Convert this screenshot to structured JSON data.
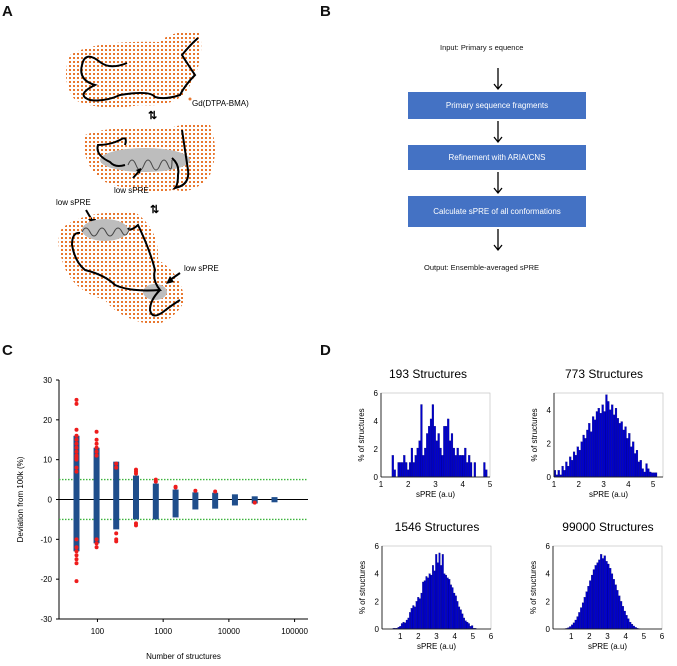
{
  "panels": {
    "a": "A",
    "b": "B",
    "c": "C",
    "d": "D"
  },
  "panel_a": {
    "gd_label": "Gd(DTPA-BMA)",
    "low_spre_1": "low sPRE",
    "low_spre_2": "low sPRE",
    "low_spre_3": "low sPRE",
    "equilibrium_icon": "equilibrium-arrows",
    "colors": {
      "dots": "#e8772e",
      "chain": "#000000",
      "helix_shade": "#bdbdbd"
    }
  },
  "panel_b": {
    "input": "Input: Primary     s equence",
    "steps": [
      "Primary sequence fragments",
      "Refinement with ARIA/CNS",
      "Calculate sPRE of all conformations"
    ],
    "output": "Output: Ensemble-averaged sPRE",
    "box_color": "#4472c4"
  },
  "chart_data": [
    {
      "type": "scatter",
      "xlabel": "Number of structures",
      "ylabel": "Deviation from 100k (%)",
      "xscale": "log",
      "xlim": [
        26,
        160000
      ],
      "ylim": [
        -30,
        30
      ],
      "xticks": [
        "100",
        "1000",
        "10000",
        "100000"
      ],
      "yticks": [
        "30",
        "20",
        "10",
        "0",
        "-10",
        "-20",
        "-30"
      ],
      "reference_line": 0,
      "threshold_lines": [
        5,
        -5
      ],
      "colors": {
        "range": "#1f4e8c",
        "outlier": "#ee1c1c",
        "threshold": "#3cb43c"
      },
      "groups": [
        {
          "x": 48,
          "range": [
            -13,
            16
          ],
          "outliers": [
            25,
            24,
            17.5,
            16,
            15,
            14,
            13,
            12,
            11,
            10.5,
            10,
            8,
            7,
            -10,
            -12,
            -13,
            -14,
            -15,
            -16,
            -20.5
          ]
        },
        {
          "x": 97,
          "range": [
            -11,
            13
          ],
          "outliers": [
            17,
            15,
            14,
            13,
            12,
            11,
            -10,
            -11,
            -12
          ]
        },
        {
          "x": 193,
          "range": [
            -7.5,
            9.5
          ],
          "outliers": [
            9,
            8,
            -8.5,
            -10,
            -10.5
          ]
        },
        {
          "x": 386,
          "range": [
            -5,
            6
          ],
          "outliers": [
            7.5,
            7,
            6.5,
            -6,
            -6.5
          ]
        },
        {
          "x": 773,
          "range": [
            -5,
            4
          ],
          "outliers": [
            5,
            4.5
          ]
        },
        {
          "x": 1546,
          "range": [
            -4.5,
            2.5
          ],
          "outliers": [
            3,
            3.2
          ]
        },
        {
          "x": 3092,
          "range": [
            -2.5,
            1.8
          ],
          "outliers": [
            2.2
          ]
        },
        {
          "x": 6184,
          "range": [
            -2.3,
            1.7
          ],
          "outliers": [
            2
          ]
        },
        {
          "x": 12368,
          "range": [
            -1.5,
            1.3
          ],
          "outliers": []
        },
        {
          "x": 24736,
          "range": [
            -1,
            0.8
          ],
          "outliers": [
            -0.8
          ]
        },
        {
          "x": 49472,
          "range": [
            -0.7,
            0.6
          ],
          "outliers": []
        }
      ]
    },
    {
      "type": "bar",
      "title": "193 Structures",
      "xlabel": "sPRE (a.u)",
      "ylabel": "% of structures",
      "xlim": [
        1,
        5
      ],
      "ylim": [
        0,
        6
      ],
      "xticks": [
        "1",
        "2",
        "3",
        "4",
        "5"
      ],
      "yticks": [
        "0",
        "2",
        "4",
        "6"
      ],
      "bin_start": 1.4,
      "bin_width": 0.07,
      "color": "#0000cc",
      "values": [
        1.55,
        0.52,
        0,
        1.04,
        1.04,
        1.04,
        1.55,
        1.04,
        0.52,
        1.04,
        2.07,
        1.04,
        1.55,
        2.07,
        2.59,
        5.18,
        1.55,
        2.07,
        3.11,
        3.63,
        4.15,
        5.18,
        3.63,
        2.59,
        3.11,
        2.07,
        1.55,
        3.63,
        3.63,
        4.15,
        2.59,
        3.11,
        2.07,
        1.55,
        2.07,
        1.55,
        1.55,
        1.55,
        2.07,
        1.04,
        1.55,
        1.04,
        0,
        1.04,
        0,
        0,
        0,
        0,
        1.04,
        0.52
      ]
    },
    {
      "type": "bar",
      "title": "773 Structures",
      "xlabel": "sPRE (a.u)",
      "ylabel": "% of structures",
      "xlim": [
        1,
        5.4
      ],
      "ylim": [
        0,
        5
      ],
      "xticks": [
        "1",
        "2",
        "3",
        "4",
        "5"
      ],
      "yticks": [
        "0",
        "2",
        "4"
      ],
      "bin_start": 1.0,
      "bin_width": 0.077,
      "color": "#0000cc",
      "values": [
        0.4,
        0.13,
        0.4,
        0.13,
        0.65,
        0.4,
        0.9,
        0.65,
        1.2,
        1.0,
        1.5,
        1.3,
        1.8,
        1.6,
        2.1,
        2.5,
        2.3,
        2.8,
        3.2,
        2.7,
        3.6,
        3.4,
        3.9,
        4.1,
        3.8,
        4.3,
        3.9,
        4.9,
        4.5,
        4.0,
        4.3,
        3.7,
        4.1,
        3.5,
        3.2,
        3.3,
        2.8,
        3.0,
        2.3,
        2.6,
        1.8,
        2.1,
        1.4,
        1.6,
        0.9,
        1.0,
        0.5,
        0.3,
        0.8,
        0.5,
        0.3,
        0.26,
        0.26,
        0.26
      ]
    },
    {
      "type": "bar",
      "title": "1546 Structures",
      "xlabel": "sPRE (a.u)",
      "ylabel": "% of structures",
      "xlim": [
        0,
        6
      ],
      "ylim": [
        0,
        6
      ],
      "xticks": [
        "1",
        "2",
        "3",
        "4",
        "5",
        "6"
      ],
      "yticks": [
        "0",
        "2",
        "4",
        "6"
      ],
      "bin_start": 0.6,
      "bin_width": 0.09,
      "color": "#0000cc",
      "values": [
        0.06,
        0.06,
        0.06,
        0.13,
        0.2,
        0.4,
        0.5,
        0.45,
        0.65,
        0.8,
        1.2,
        1.5,
        1.7,
        1.6,
        2.0,
        2.3,
        2.2,
        2.6,
        3.4,
        3.5,
        3.8,
        3.7,
        4.0,
        3.9,
        4.6,
        4.2,
        5.4,
        4.8,
        5.5,
        4.6,
        5.4,
        4.0,
        3.9,
        3.7,
        3.6,
        3.2,
        3.0,
        2.6,
        2.4,
        2.0,
        1.6,
        1.4,
        1.1,
        0.8,
        0.6,
        0.5,
        0.4,
        0.2,
        0.25,
        0.06,
        0.06
      ]
    },
    {
      "type": "bar",
      "title": "99000 Structures",
      "xlabel": "sPRE (a.u)",
      "ylabel": "% of structures",
      "xlim": [
        0,
        6
      ],
      "ylim": [
        0,
        6
      ],
      "xticks": [
        "1",
        "2",
        "3",
        "4",
        "5",
        "6"
      ],
      "yticks": [
        "0",
        "2",
        "4",
        "6"
      ],
      "bin_start": 0.6,
      "bin_width": 0.1,
      "color": "#0000cc",
      "values": [
        0.02,
        0.05,
        0.1,
        0.18,
        0.3,
        0.45,
        0.65,
        0.9,
        1.2,
        1.55,
        1.9,
        2.3,
        2.7,
        3.1,
        3.5,
        3.9,
        4.3,
        4.6,
        4.8,
        5.0,
        5.4,
        5.1,
        5.3,
        4.9,
        4.7,
        4.4,
        4.0,
        3.6,
        3.2,
        2.8,
        2.4,
        2.0,
        1.65,
        1.3,
        1.0,
        0.75,
        0.5,
        0.35,
        0.22,
        0.12,
        0.06,
        0.03
      ]
    }
  ]
}
